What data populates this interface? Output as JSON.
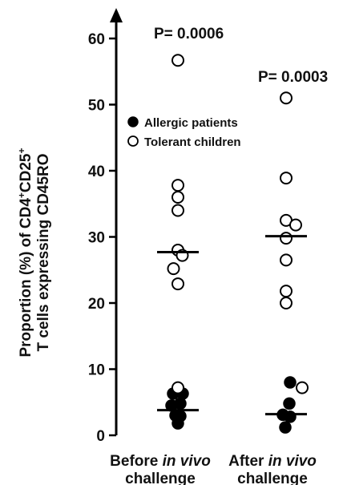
{
  "chart_data": {
    "type": "scatter",
    "ylabel_line1": "Proportion (%) of CD4",
    "ylabel_sup1": "+",
    "ylabel_mid": "CD25",
    "ylabel_sup2": "+",
    "ylabel_line2": "T cells expressing CD45RO",
    "ylim": [
      0,
      62
    ],
    "yticks": [
      "0",
      "10",
      "20",
      "30",
      "40",
      "50",
      "60"
    ],
    "ytick_values": [
      0,
      10,
      20,
      30,
      40,
      50,
      60
    ],
    "grid": false,
    "legend_position": "upper-left",
    "legend": [
      {
        "label": "Allergic patients",
        "marker": "filled-circle"
      },
      {
        "label": "Tolerant children",
        "marker": "open-circle"
      }
    ],
    "categories": [
      {
        "pre": "Before ",
        "ital": "in vivo",
        "line2": "challenge"
      },
      {
        "pre": "After ",
        "ital": "in vivo",
        "line2": "challenge"
      }
    ],
    "annotations": [
      "P= 0.0006",
      "P= 0.0003"
    ],
    "series": [
      {
        "name": "Allergic patients",
        "groups": [
          [
            {
              "dx": -0.6,
              "y": 6.3
            },
            {
              "dx": 0.6,
              "y": 6.3
            },
            {
              "dx": -0.8,
              "y": 4.5
            },
            {
              "dx": 0.3,
              "y": 4.8
            },
            {
              "dx": -0.3,
              "y": 3.0
            },
            {
              "dx": 0.3,
              "y": 2.9
            },
            {
              "dx": 0,
              "y": 1.8
            }
          ],
          [
            {
              "dx": 0.5,
              "y": 8.0
            },
            {
              "dx": 0.4,
              "y": 4.8
            },
            {
              "dx": -0.4,
              "y": 3.1
            },
            {
              "dx": 0.5,
              "y": 2.8
            },
            {
              "dx": -0.1,
              "y": 1.2
            }
          ]
        ],
        "medians": [
          3.8,
          3.2
        ]
      },
      {
        "name": "Tolerant children",
        "groups": [
          [
            {
              "dx": 0,
              "y": 56.7
            },
            {
              "dx": 0,
              "y": 37.8
            },
            {
              "dx": 0,
              "y": 36.0
            },
            {
              "dx": 0,
              "y": 34.0
            },
            {
              "dx": 0,
              "y": 28.0
            },
            {
              "dx": 0.55,
              "y": 27.2
            },
            {
              "dx": -0.55,
              "y": 25.2
            },
            {
              "dx": 0,
              "y": 22.9
            },
            {
              "dx": 0,
              "y": 7.2
            }
          ],
          [
            {
              "dx": 0,
              "y": 51.0
            },
            {
              "dx": 0,
              "y": 38.9
            },
            {
              "dx": 0,
              "y": 32.5
            },
            {
              "dx": 1.2,
              "y": 31.8
            },
            {
              "dx": 0,
              "y": 29.8
            },
            {
              "dx": 0,
              "y": 26.5
            },
            {
              "dx": 0,
              "y": 21.8
            },
            {
              "dx": 0,
              "y": 20.0
            },
            {
              "dx": 2.0,
              "y": 7.2
            }
          ]
        ],
        "medians": [
          27.7,
          30.1
        ]
      }
    ]
  }
}
